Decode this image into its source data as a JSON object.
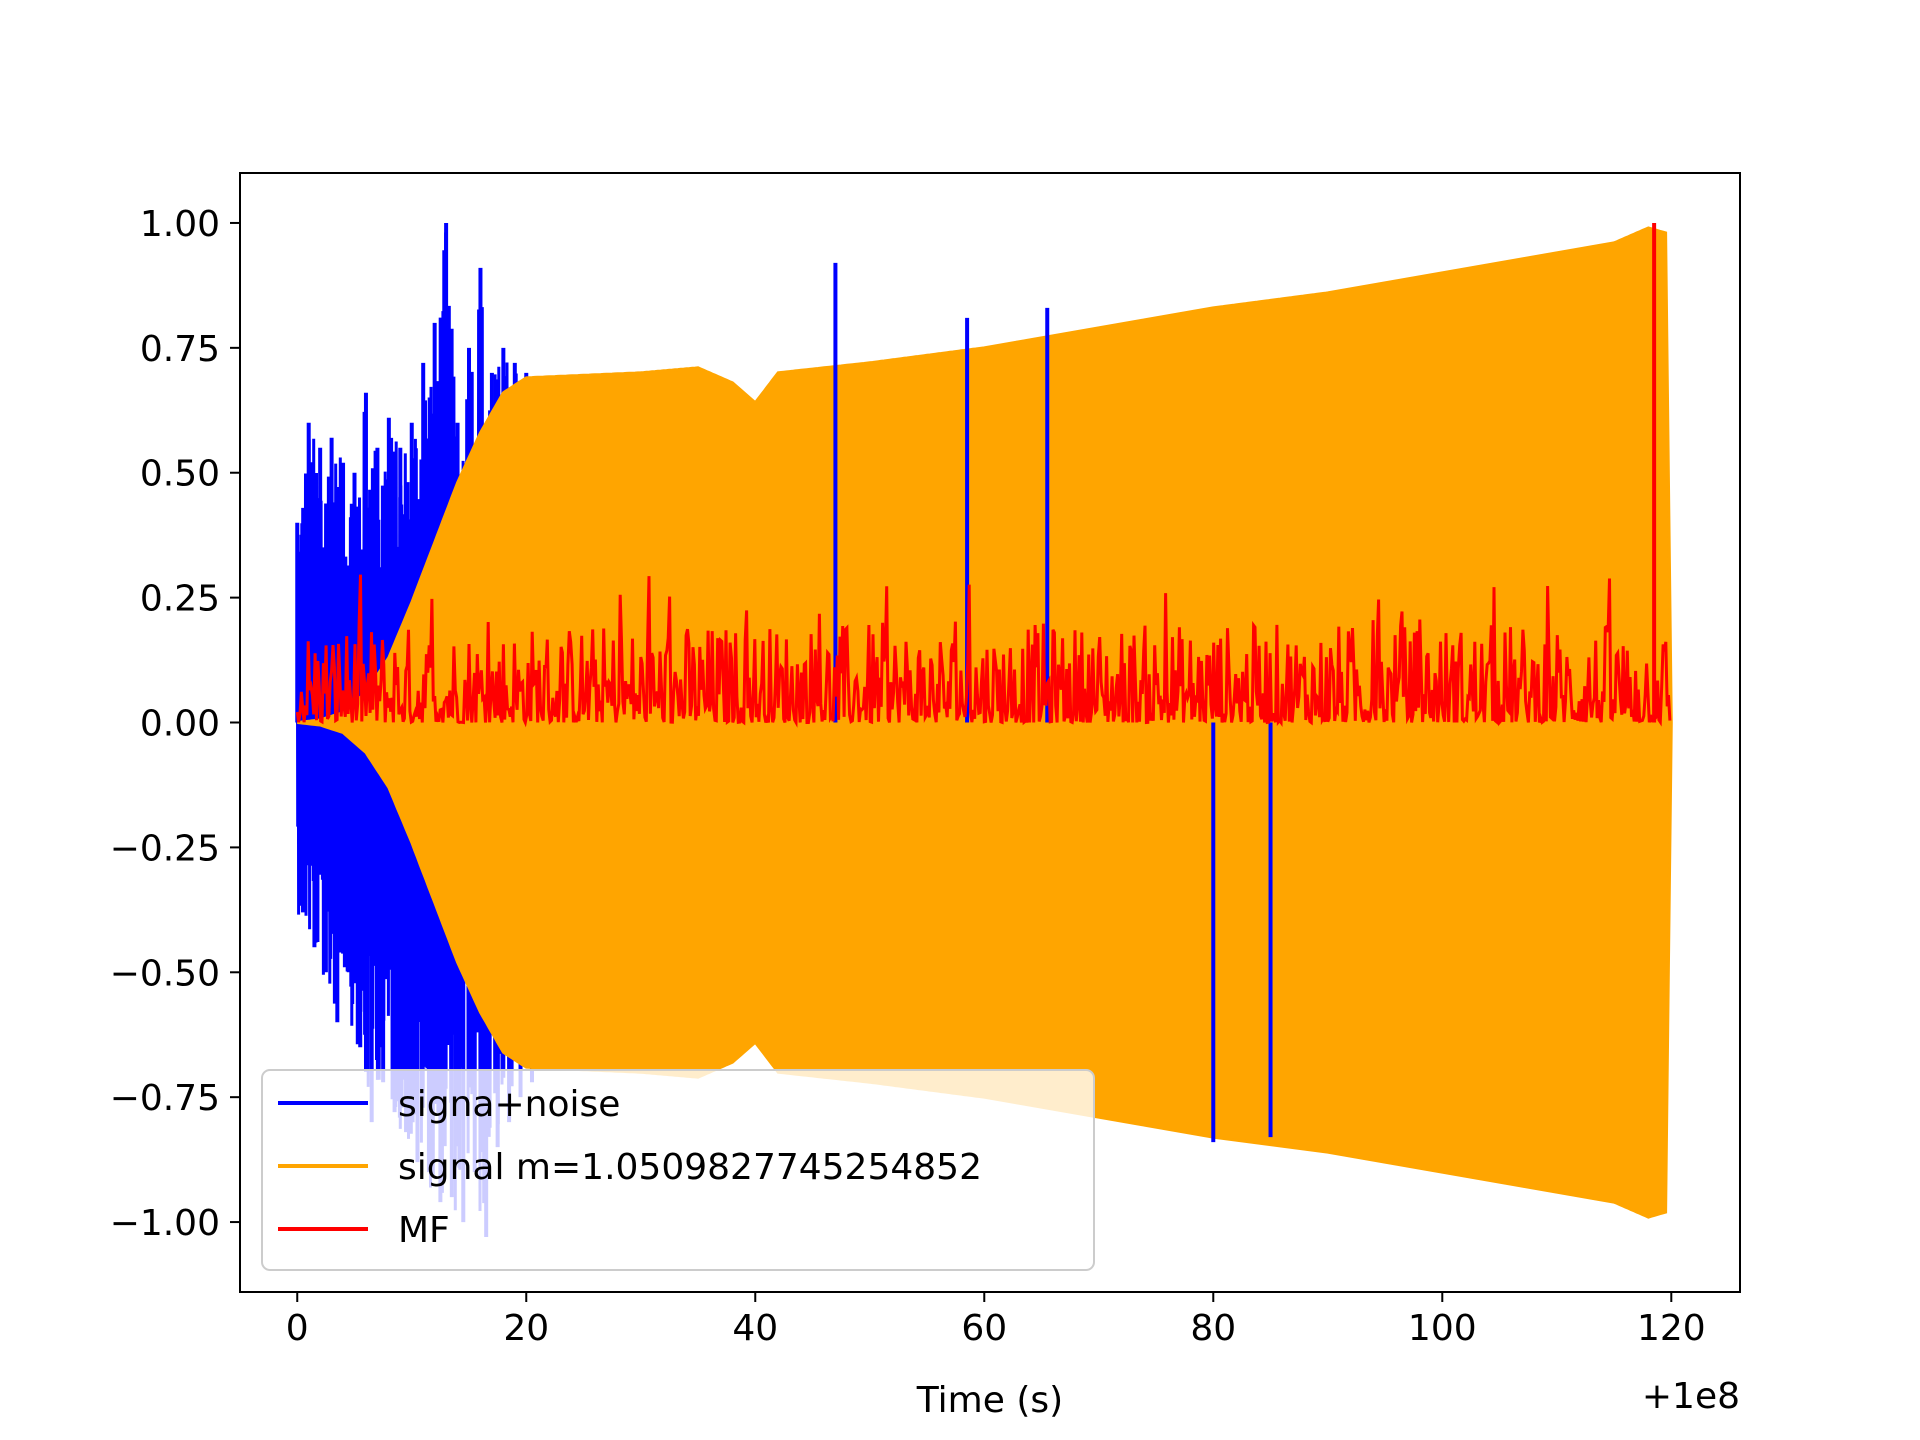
{
  "chart_data": {
    "type": "line",
    "xlabel": "Time (s)",
    "ylabel": "",
    "x_offset_label": "+1e8",
    "xlim": [
      -5,
      126
    ],
    "ylim": [
      -1.14,
      1.1
    ],
    "xticks": [
      0,
      20,
      40,
      60,
      80,
      100,
      120
    ],
    "xtick_labels": [
      "0",
      "20",
      "40",
      "60",
      "80",
      "100",
      "120"
    ],
    "yticks": [
      1.0,
      0.75,
      0.5,
      0.25,
      0.0,
      -0.25,
      -0.5,
      -0.75,
      -1.0
    ],
    "ytick_labels": [
      "1.00",
      "0.75",
      "0.50",
      "0.25",
      "0.00",
      "−0.25",
      "−0.50",
      "−0.75",
      "−1.00"
    ],
    "grid": false,
    "legend_position": "lower-left",
    "series": [
      {
        "name": "signa+noise",
        "color": "#0000ff",
        "x": [
          0,
          1,
          2,
          3,
          4,
          5,
          6,
          7,
          8,
          9,
          10,
          11,
          12,
          13,
          14,
          15,
          16,
          17,
          18,
          19,
          20
        ],
        "upper": [
          0.4,
          0.6,
          0.55,
          0.57,
          0.52,
          0.5,
          0.66,
          0.55,
          0.61,
          0.55,
          0.6,
          0.72,
          0.8,
          1.0,
          0.6,
          0.75,
          0.91,
          0.7,
          0.75,
          0.72,
          0.7
        ],
        "lower": [
          -0.38,
          -0.45,
          -0.5,
          -0.6,
          -0.5,
          -0.65,
          -0.8,
          -0.72,
          -0.78,
          -0.82,
          -0.88,
          -0.9,
          -0.96,
          -0.95,
          -1.0,
          -0.9,
          -1.03,
          -0.85,
          -0.8,
          -0.75,
          -0.72
        ],
        "spikes": [
          {
            "x": 47,
            "y": 0.92
          },
          {
            "x": 58.5,
            "y": 0.81
          },
          {
            "x": 65.5,
            "y": 0.83
          },
          {
            "x": 80,
            "y": -0.84
          },
          {
            "x": 85,
            "y": -0.83
          }
        ]
      },
      {
        "name": "signal m=1.0509827745254852",
        "color": "#ffa500",
        "x": [
          0,
          2,
          4,
          6,
          8,
          10,
          12,
          14,
          16,
          18,
          20,
          25,
          30,
          35,
          38,
          40,
          42,
          50,
          60,
          70,
          80,
          90,
          100,
          110,
          115,
          118,
          119.5,
          120
        ],
        "envelope": [
          0.0,
          0.005,
          0.02,
          0.06,
          0.13,
          0.24,
          0.36,
          0.48,
          0.58,
          0.66,
          0.69,
          0.695,
          0.7,
          0.71,
          0.68,
          0.64,
          0.7,
          0.72,
          0.75,
          0.79,
          0.83,
          0.86,
          0.9,
          0.94,
          0.96,
          0.99,
          0.98,
          0.0
        ]
      },
      {
        "name": "MF",
        "color": "#ff0000",
        "baseline": 0.0,
        "typical_peak": 0.2,
        "max_peak": 0.3,
        "peak": {
          "x": 118.5,
          "y": 1.0
        }
      }
    ]
  },
  "legend": {
    "items": [
      {
        "label": "signa+noise",
        "color": "#0000ff"
      },
      {
        "label": "signal m=1.0509827745254852",
        "color": "#ffa500"
      },
      {
        "label": "MF",
        "color": "#ff0000"
      }
    ]
  }
}
